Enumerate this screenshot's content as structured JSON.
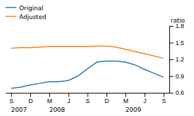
{
  "chart_data": {
    "type": "line",
    "ylabel": "ratio",
    "categories": [
      "S",
      null,
      "D",
      null,
      "M",
      null,
      "J",
      null,
      "S",
      null,
      "D",
      null,
      "M",
      null,
      "J",
      null,
      "S"
    ],
    "series": [
      {
        "name": "Original",
        "values": [
          0.68,
          0.7,
          0.74,
          0.77,
          0.8,
          0.8,
          0.82,
          0.9,
          1.03,
          1.15,
          1.17,
          1.17,
          1.15,
          1.1,
          1.02,
          0.95,
          0.88
        ]
      },
      {
        "name": "Adjusted",
        "values": [
          1.4,
          1.41,
          1.41,
          1.42,
          1.43,
          1.43,
          1.43,
          1.43,
          1.43,
          1.44,
          1.44,
          1.42,
          1.38,
          1.34,
          1.3,
          1.26,
          1.22
        ]
      }
    ],
    "annotations": [
      {
        "text": "2007",
        "index": 0
      },
      {
        "text": "2008",
        "index": 4
      },
      {
        "text": "2009",
        "index": 12
      }
    ],
    "ylim": [
      0.6,
      1.8
    ],
    "yticks": [
      0.6,
      0.9,
      1.2,
      1.5,
      1.8
    ],
    "legend": "top-left",
    "grid": false
  }
}
